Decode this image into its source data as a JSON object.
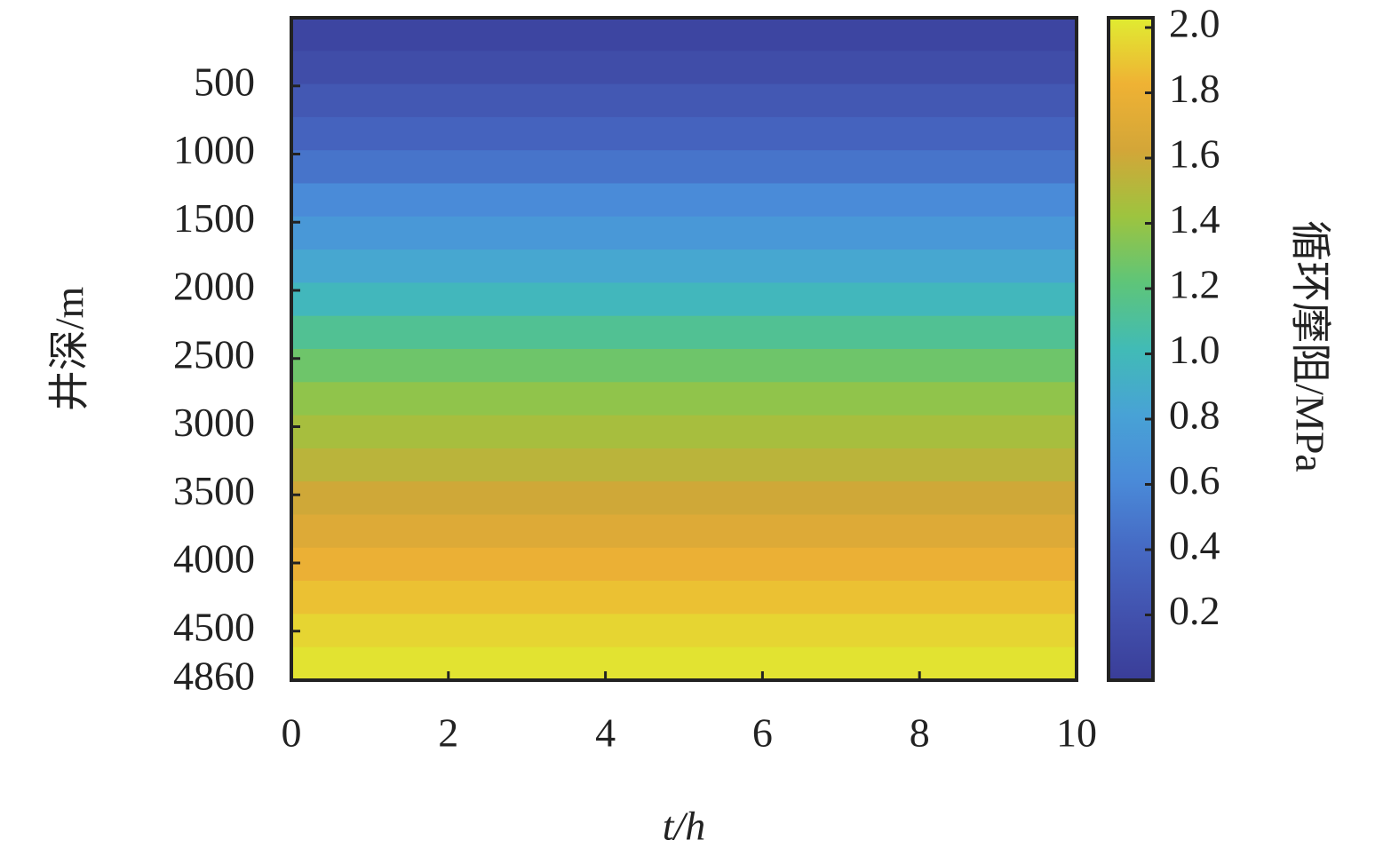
{
  "chart_data": {
    "type": "heatmap",
    "xlabel": "t/h",
    "ylabel": "井深/m",
    "colorbar_label": "循环摩阻/MPa",
    "xbins": [
      0,
      10
    ],
    "ybins": [
      0,
      243,
      486,
      729,
      972,
      1215,
      1458,
      1701,
      1944,
      2187,
      2430,
      2673,
      2916,
      3159,
      3402,
      3645,
      3888,
      4131,
      4374,
      4617,
      4860
    ],
    "values": [
      [
        0.08
      ],
      [
        0.15
      ],
      [
        0.25
      ],
      [
        0.35
      ],
      [
        0.47
      ],
      [
        0.62
      ],
      [
        0.73
      ],
      [
        0.85
      ],
      [
        0.98
      ],
      [
        1.13
      ],
      [
        1.27
      ],
      [
        1.38
      ],
      [
        1.46
      ],
      [
        1.53
      ],
      [
        1.61
      ],
      [
        1.7
      ],
      [
        1.8
      ],
      [
        1.88
      ],
      [
        1.95
      ],
      [
        2.0
      ]
    ],
    "xlim": [
      0,
      10
    ],
    "xticks": [
      0,
      2,
      4,
      6,
      8,
      10
    ],
    "ylim": [
      0,
      4860
    ],
    "y_inverted": true,
    "yticks": [
      500,
      1000,
      1500,
      2000,
      2500,
      3000,
      3500,
      4000,
      4500,
      4860
    ],
    "clim": [
      0,
      2.03
    ],
    "cticks": [
      0.2,
      0.4,
      0.6,
      0.8,
      {
        "value": 1,
        "label": "1.0"
      },
      1.2,
      1.4,
      1.6,
      1.8,
      {
        "value": 2,
        "label": "2.0"
      }
    ],
    "colormap": [
      "#3a3d98",
      "#4252ae",
      "#466ac4",
      "#4a8ad8",
      "#48a2d6",
      "#41bbb6",
      "#5ec579",
      "#9dc43f",
      "#d3a638",
      "#efb234",
      "#e0ec31"
    ]
  }
}
